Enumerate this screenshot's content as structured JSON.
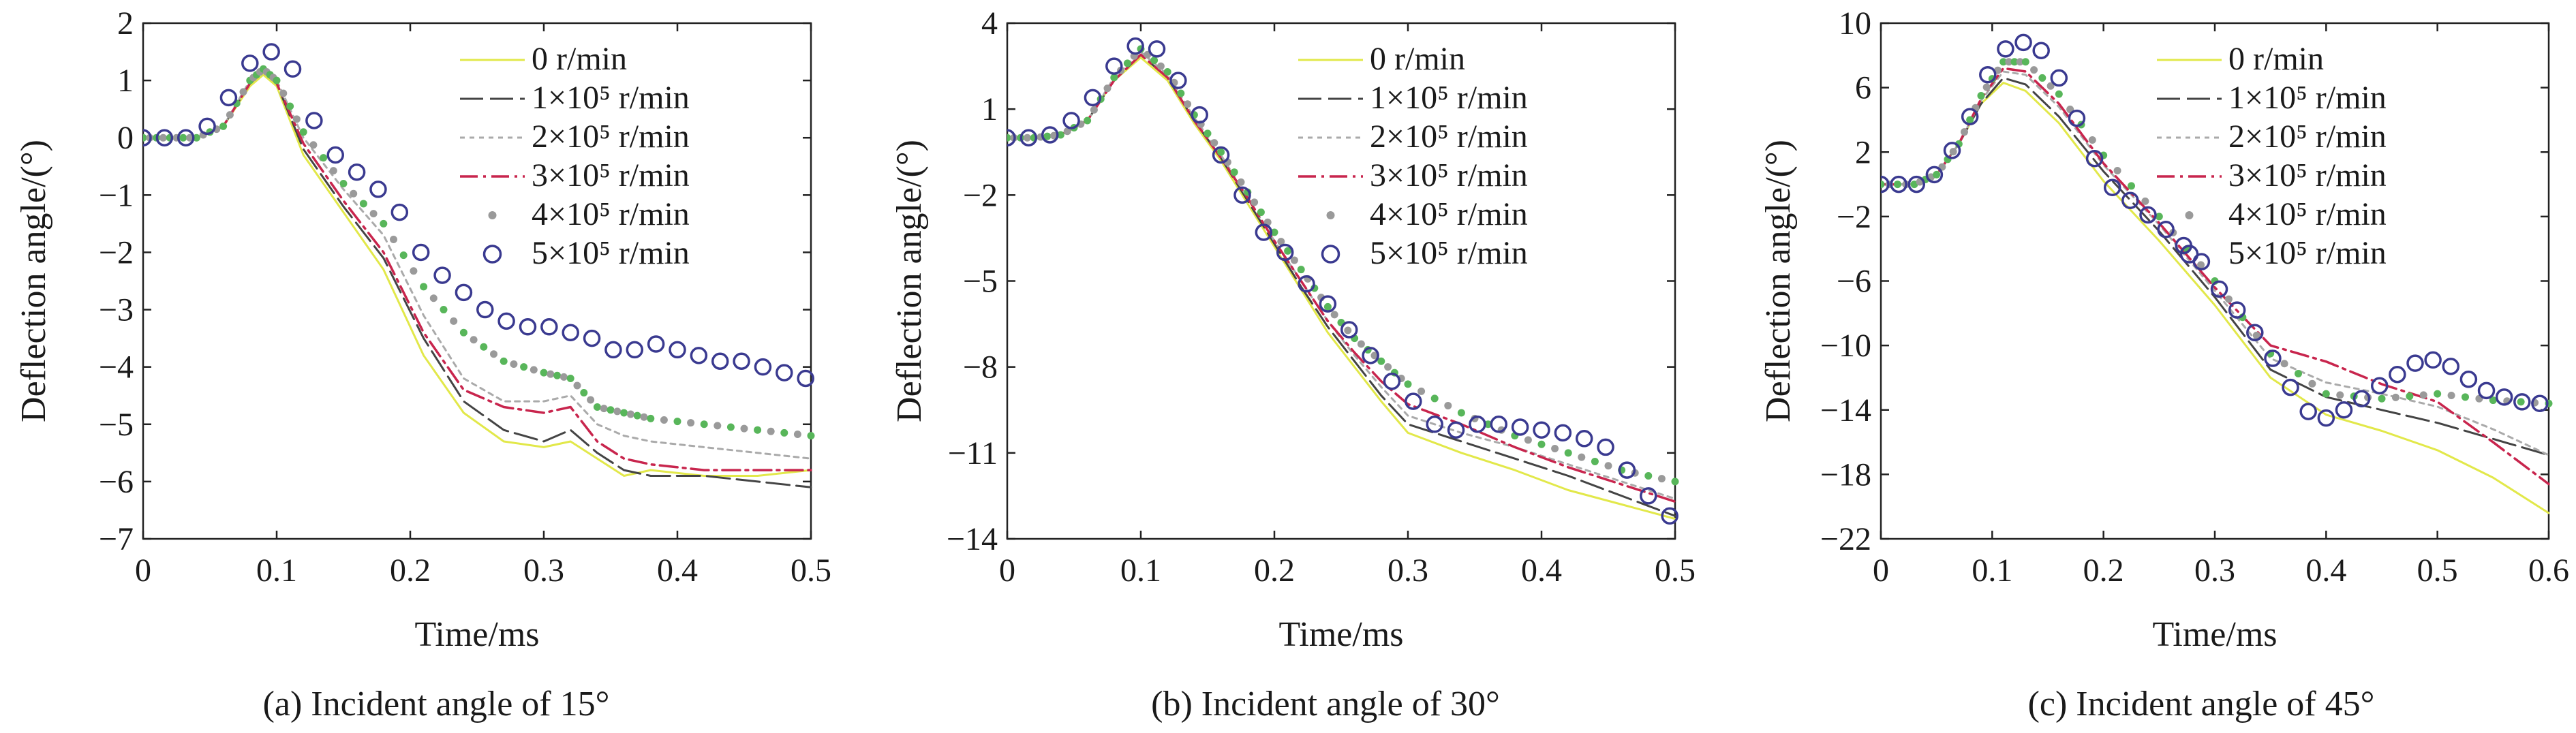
{
  "chart_data": [
    {
      "type": "line",
      "caption": "(a) Incident angle of 15°",
      "xlabel": "Time/ms",
      "ylabel": "Deflection angle/(°)",
      "xlim": [
        0,
        0.5
      ],
      "ylim": [
        -7,
        2
      ],
      "xticks": [
        0,
        0.1,
        0.2,
        0.3,
        0.4,
        0.5
      ],
      "xtick_labels": [
        "0",
        "0.1",
        "0.2",
        "0.3",
        "0.4",
        "0.5"
      ],
      "yticks": [
        -7,
        -6,
        -5,
        -4,
        -3,
        -2,
        -1,
        0,
        1,
        2
      ],
      "ytick_labels": [
        "−7",
        "−6",
        "−5",
        "−4",
        "−3",
        "−2",
        "−1",
        "0",
        "1",
        "2"
      ],
      "legend_position": "top-right",
      "series": [
        {
          "name": "0 r/min",
          "style": "solid",
          "color": "#e2e84a",
          "x": [
            0,
            0.02,
            0.04,
            0.06,
            0.08,
            0.09,
            0.1,
            0.12,
            0.15,
            0.18,
            0.21,
            0.24,
            0.27,
            0.3,
            0.32,
            0.34,
            0.36,
            0.38,
            0.42,
            0.46,
            0.5
          ],
          "y": [
            0,
            0,
            0,
            0.2,
            0.9,
            1.1,
            0.9,
            -0.3,
            -1.3,
            -2.3,
            -3.8,
            -4.8,
            -5.3,
            -5.4,
            -5.3,
            -5.6,
            -5.9,
            -5.8,
            -5.9,
            -5.9,
            -5.8
          ]
        },
        {
          "name": "1×10⁵ r/min",
          "style": "longdash",
          "color": "#444444",
          "x": [
            0,
            0.02,
            0.04,
            0.06,
            0.08,
            0.09,
            0.1,
            0.12,
            0.15,
            0.18,
            0.21,
            0.24,
            0.27,
            0.3,
            0.32,
            0.34,
            0.36,
            0.38,
            0.42,
            0.46,
            0.5
          ],
          "y": [
            0,
            0,
            0,
            0.2,
            0.95,
            1.15,
            0.95,
            -0.2,
            -1.2,
            -2.1,
            -3.5,
            -4.6,
            -5.1,
            -5.3,
            -5.1,
            -5.5,
            -5.8,
            -5.9,
            -5.9,
            -6.0,
            -6.1
          ]
        },
        {
          "name": "2×10⁵ r/min",
          "style": "dotted",
          "color": "#aaaaaa",
          "x": [
            0,
            0.02,
            0.04,
            0.06,
            0.08,
            0.09,
            0.1,
            0.12,
            0.15,
            0.18,
            0.21,
            0.24,
            0.27,
            0.3,
            0.32,
            0.34,
            0.36,
            0.38,
            0.42,
            0.46,
            0.5
          ],
          "y": [
            0,
            0,
            0,
            0.2,
            1.0,
            1.2,
            1.0,
            0,
            -0.9,
            -1.7,
            -3.1,
            -4.2,
            -4.6,
            -4.6,
            -4.5,
            -5.0,
            -5.2,
            -5.3,
            -5.4,
            -5.5,
            -5.6
          ]
        },
        {
          "name": "3×10⁵ r/min",
          "style": "dashdot",
          "color": "#c8254d",
          "x": [
            0,
            0.02,
            0.04,
            0.06,
            0.08,
            0.09,
            0.1,
            0.12,
            0.15,
            0.18,
            0.21,
            0.24,
            0.27,
            0.3,
            0.32,
            0.34,
            0.36,
            0.38,
            0.42,
            0.46,
            0.5
          ],
          "y": [
            0,
            0,
            0,
            0.2,
            0.95,
            1.15,
            0.95,
            -0.1,
            -1.1,
            -2.0,
            -3.4,
            -4.4,
            -4.7,
            -4.8,
            -4.7,
            -5.3,
            -5.6,
            -5.7,
            -5.8,
            -5.8,
            -5.8
          ]
        },
        {
          "name": "4×10⁵ r/min",
          "style": "dots",
          "color": "#58b65a",
          "color_alt": "#9a9a9a",
          "x": [
            0,
            0.02,
            0.04,
            0.06,
            0.08,
            0.09,
            0.1,
            0.12,
            0.15,
            0.18,
            0.21,
            0.24,
            0.27,
            0.3,
            0.32,
            0.34,
            0.36,
            0.38,
            0.42,
            0.46,
            0.5
          ],
          "y": [
            0,
            0,
            0,
            0.2,
            1.0,
            1.2,
            1.0,
            0.1,
            -0.8,
            -1.5,
            -2.6,
            -3.4,
            -3.9,
            -4.1,
            -4.2,
            -4.7,
            -4.8,
            -4.9,
            -5.0,
            -5.1,
            -5.2
          ]
        },
        {
          "name": "5×10⁵ r/min",
          "style": "circles",
          "color": "#3a3a90",
          "x": [
            0,
            0.016,
            0.032,
            0.048,
            0.064,
            0.08,
            0.096,
            0.112,
            0.128,
            0.144,
            0.16,
            0.176,
            0.192,
            0.208,
            0.224,
            0.24,
            0.256,
            0.272,
            0.288,
            0.304,
            0.32,
            0.336,
            0.352,
            0.368,
            0.384,
            0.4,
            0.416,
            0.432,
            0.448,
            0.464,
            0.48,
            0.496
          ],
          "y": [
            0,
            0,
            0,
            0.2,
            0.7,
            1.3,
            1.5,
            1.2,
            0.3,
            -0.3,
            -0.6,
            -0.9,
            -1.3,
            -2.0,
            -2.4,
            -2.7,
            -3.0,
            -3.2,
            -3.3,
            -3.3,
            -3.4,
            -3.5,
            -3.7,
            -3.7,
            -3.6,
            -3.7,
            -3.8,
            -3.9,
            -3.9,
            -4.0,
            -4.1,
            -4.2
          ]
        }
      ]
    },
    {
      "type": "line",
      "caption": "(b) Incident angle of 30°",
      "xlabel": "Time/ms",
      "ylabel": "Deflection angle/(°)",
      "xlim": [
        0,
        0.5
      ],
      "ylim": [
        -14,
        4
      ],
      "xticks": [
        0,
        0.1,
        0.2,
        0.3,
        0.4,
        0.5
      ],
      "xtick_labels": [
        "0",
        "0.1",
        "0.2",
        "0.3",
        "0.4",
        "0.5"
      ],
      "yticks": [
        -14,
        -11,
        -8,
        -5,
        -2,
        1,
        4
      ],
      "ytick_labels": [
        "−14",
        "−11",
        "−8",
        "−5",
        "−2",
        "1",
        "4"
      ],
      "legend_position": "top-right",
      "series": [
        {
          "name": "0 r/min",
          "style": "solid",
          "color": "#e2e84a",
          "x": [
            0,
            0.02,
            0.04,
            0.06,
            0.08,
            0.1,
            0.12,
            0.14,
            0.16,
            0.18,
            0.2,
            0.22,
            0.24,
            0.26,
            0.28,
            0.3,
            0.34,
            0.38,
            0.42,
            0.46,
            0.5
          ],
          "y": [
            0,
            0,
            0.1,
            0.6,
            2.0,
            2.8,
            2.0,
            0.5,
            -0.8,
            -2.3,
            -3.8,
            -5.3,
            -6.8,
            -8.0,
            -9.2,
            -10.3,
            -11.0,
            -11.6,
            -12.3,
            -12.8,
            -13.3
          ]
        },
        {
          "name": "1×10⁵ r/min",
          "style": "longdash",
          "color": "#444444",
          "x": [
            0,
            0.02,
            0.04,
            0.06,
            0.08,
            0.1,
            0.12,
            0.14,
            0.16,
            0.18,
            0.2,
            0.22,
            0.24,
            0.26,
            0.28,
            0.3,
            0.34,
            0.38,
            0.42,
            0.46,
            0.5
          ],
          "y": [
            0,
            0,
            0.1,
            0.6,
            2.0,
            2.9,
            2.1,
            0.6,
            -0.7,
            -2.2,
            -3.7,
            -5.2,
            -6.6,
            -7.8,
            -9.0,
            -10.0,
            -10.6,
            -11.2,
            -11.8,
            -12.5,
            -13.2
          ]
        },
        {
          "name": "2×10⁵ r/min",
          "style": "dotted",
          "color": "#aaaaaa",
          "x": [
            0,
            0.02,
            0.04,
            0.06,
            0.08,
            0.1,
            0.12,
            0.14,
            0.16,
            0.18,
            0.2,
            0.22,
            0.24,
            0.26,
            0.28,
            0.3,
            0.34,
            0.38,
            0.42,
            0.46,
            0.5
          ],
          "y": [
            0,
            0,
            0.1,
            0.6,
            2.1,
            3.0,
            2.2,
            0.7,
            -0.6,
            -2.1,
            -3.6,
            -5.0,
            -6.4,
            -7.6,
            -8.7,
            -9.7,
            -10.3,
            -10.8,
            -11.4,
            -12.0,
            -12.6
          ]
        },
        {
          "name": "3×10⁵ r/min",
          "style": "dashdot",
          "color": "#c8254d",
          "x": [
            0,
            0.02,
            0.04,
            0.06,
            0.08,
            0.1,
            0.12,
            0.14,
            0.16,
            0.18,
            0.2,
            0.22,
            0.24,
            0.26,
            0.28,
            0.3,
            0.34,
            0.38,
            0.42,
            0.46,
            0.5
          ],
          "y": [
            0,
            0,
            0.1,
            0.6,
            2.0,
            2.9,
            2.1,
            0.6,
            -0.7,
            -2.1,
            -3.6,
            -5.0,
            -6.4,
            -7.5,
            -8.5,
            -9.3,
            -10.0,
            -10.8,
            -11.5,
            -12.1,
            -12.7
          ]
        },
        {
          "name": "4×10⁵ r/min",
          "style": "dots",
          "color": "#58b65a",
          "color_alt": "#9a9a9a",
          "x": [
            0,
            0.02,
            0.04,
            0.06,
            0.08,
            0.1,
            0.12,
            0.14,
            0.16,
            0.18,
            0.2,
            0.22,
            0.24,
            0.26,
            0.28,
            0.3,
            0.34,
            0.38,
            0.42,
            0.46,
            0.5
          ],
          "y": [
            0,
            0,
            0.1,
            0.6,
            2.1,
            3.1,
            2.3,
            0.8,
            -0.5,
            -1.9,
            -3.3,
            -4.6,
            -5.9,
            -7.0,
            -7.8,
            -8.6,
            -9.6,
            -10.4,
            -11.0,
            -11.6,
            -12.0
          ]
        },
        {
          "name": "5×10⁵ r/min",
          "style": "circles",
          "color": "#3a3a90",
          "x": [
            0,
            0.016,
            0.032,
            0.048,
            0.064,
            0.08,
            0.096,
            0.112,
            0.128,
            0.144,
            0.16,
            0.176,
            0.192,
            0.208,
            0.224,
            0.24,
            0.256,
            0.272,
            0.288,
            0.304,
            0.32,
            0.336,
            0.352,
            0.368,
            0.384,
            0.4,
            0.416,
            0.432,
            0.448,
            0.464,
            0.48,
            0.496
          ],
          "y": [
            0,
            0,
            0.1,
            0.6,
            1.4,
            2.5,
            3.2,
            3.1,
            2.0,
            0.8,
            -0.6,
            -2.0,
            -3.3,
            -4.0,
            -5.1,
            -5.8,
            -6.7,
            -7.6,
            -8.5,
            -9.2,
            -10.0,
            -10.2,
            -10.0,
            -10.0,
            -10.1,
            -10.2,
            -10.3,
            -10.5,
            -10.8,
            -11.6,
            -12.5,
            -13.2
          ]
        }
      ]
    },
    {
      "type": "line",
      "caption": "(c) Incident angle of 45°",
      "xlabel": "Time/ms",
      "ylabel": "Deflection angle/(°)",
      "xlim": [
        0,
        0.6
      ],
      "ylim": [
        -22,
        10
      ],
      "xticks": [
        0,
        0.1,
        0.2,
        0.3,
        0.4,
        0.5,
        0.6
      ],
      "xtick_labels": [
        "0",
        "0.1",
        "0.2",
        "0.3",
        "0.4",
        "0.5",
        "0.6"
      ],
      "yticks": [
        -22,
        -18,
        -14,
        -10,
        -6,
        -2,
        2,
        6,
        10
      ],
      "ytick_labels": [
        "−22",
        "−18",
        "−14",
        "−10",
        "−6",
        "−2",
        "2",
        "6",
        "10"
      ],
      "legend_position": "top-right",
      "series": [
        {
          "name": "0 r/min",
          "style": "solid",
          "color": "#e2e84a",
          "x": [
            0,
            0.03,
            0.05,
            0.07,
            0.09,
            0.11,
            0.13,
            0.16,
            0.2,
            0.25,
            0.3,
            0.35,
            0.4,
            0.45,
            0.5,
            0.55,
            0.6
          ],
          "y": [
            0,
            0,
            0.6,
            2.5,
            5.0,
            6.3,
            5.8,
            3.8,
            0.2,
            -3.5,
            -7.5,
            -12.0,
            -14.3,
            -15.3,
            -16.5,
            -18.2,
            -20.4
          ]
        },
        {
          "name": "1×10⁵ r/min",
          "style": "longdash",
          "color": "#444444",
          "x": [
            0,
            0.03,
            0.05,
            0.07,
            0.09,
            0.11,
            0.13,
            0.16,
            0.2,
            0.25,
            0.3,
            0.35,
            0.4,
            0.45,
            0.5,
            0.55,
            0.6
          ],
          "y": [
            0,
            0,
            0.6,
            2.5,
            5.0,
            6.6,
            6.2,
            4.2,
            0.8,
            -2.9,
            -7.0,
            -11.5,
            -13.2,
            -14.0,
            -14.8,
            -15.8,
            -16.8
          ]
        },
        {
          "name": "2×10⁵ r/min",
          "style": "dotted",
          "color": "#aaaaaa",
          "x": [
            0,
            0.03,
            0.05,
            0.07,
            0.09,
            0.11,
            0.13,
            0.16,
            0.2,
            0.25,
            0.3,
            0.35,
            0.4,
            0.45,
            0.5,
            0.55,
            0.6
          ],
          "y": [
            0,
            0,
            0.6,
            2.5,
            5.2,
            7.0,
            6.8,
            4.8,
            1.2,
            -2.5,
            -6.6,
            -10.8,
            -12.3,
            -13.0,
            -13.8,
            -15.2,
            -16.8
          ]
        },
        {
          "name": "3×10⁵ r/min",
          "style": "dashdot",
          "color": "#c8254d",
          "x": [
            0,
            0.03,
            0.05,
            0.07,
            0.09,
            0.11,
            0.13,
            0.16,
            0.2,
            0.25,
            0.3,
            0.35,
            0.4,
            0.45,
            0.5,
            0.55,
            0.6
          ],
          "y": [
            0,
            0,
            0.6,
            2.5,
            5.3,
            7.2,
            7.0,
            5.0,
            1.3,
            -2.4,
            -6.4,
            -10.0,
            -11.0,
            -12.4,
            -13.5,
            -16.0,
            -18.6
          ]
        },
        {
          "name": "4×10⁵ r/min",
          "style": "dots",
          "color": "#58b65a",
          "color_alt": "#9a9a9a",
          "x": [
            0,
            0.03,
            0.05,
            0.07,
            0.09,
            0.11,
            0.13,
            0.16,
            0.2,
            0.25,
            0.3,
            0.35,
            0.4,
            0.45,
            0.5,
            0.55,
            0.6
          ],
          "y": [
            0,
            0,
            0.6,
            2.5,
            5.5,
            7.6,
            7.6,
            5.6,
            1.8,
            -2.0,
            -6.0,
            -10.5,
            -13.0,
            -13.3,
            -13.0,
            -13.4,
            -13.6
          ]
        },
        {
          "name": "5×10⁵ r/min",
          "style": "circles",
          "color": "#3a3a90",
          "x": [
            0,
            0.016,
            0.032,
            0.048,
            0.064,
            0.08,
            0.096,
            0.112,
            0.128,
            0.144,
            0.16,
            0.176,
            0.192,
            0.208,
            0.224,
            0.24,
            0.256,
            0.272,
            0.288,
            0.304,
            0.32,
            0.336,
            0.352,
            0.368,
            0.384,
            0.4,
            0.416,
            0.432,
            0.448,
            0.464,
            0.48,
            0.496,
            0.512,
            0.528,
            0.544,
            0.56,
            0.576,
            0.592
          ],
          "y": [
            0,
            0,
            0,
            0.6,
            2.1,
            4.2,
            6.8,
            8.4,
            8.8,
            8.3,
            6.6,
            4.1,
            1.6,
            -0.2,
            -1.0,
            -1.9,
            -2.8,
            -3.8,
            -4.8,
            -6.5,
            -7.8,
            -9.2,
            -10.8,
            -12.6,
            -14.1,
            -14.5,
            -14.0,
            -13.3,
            -12.5,
            -11.8,
            -11.1,
            -10.9,
            -11.3,
            -12.1,
            -12.8,
            -13.2,
            -13.5,
            -13.6
          ]
        }
      ]
    }
  ]
}
